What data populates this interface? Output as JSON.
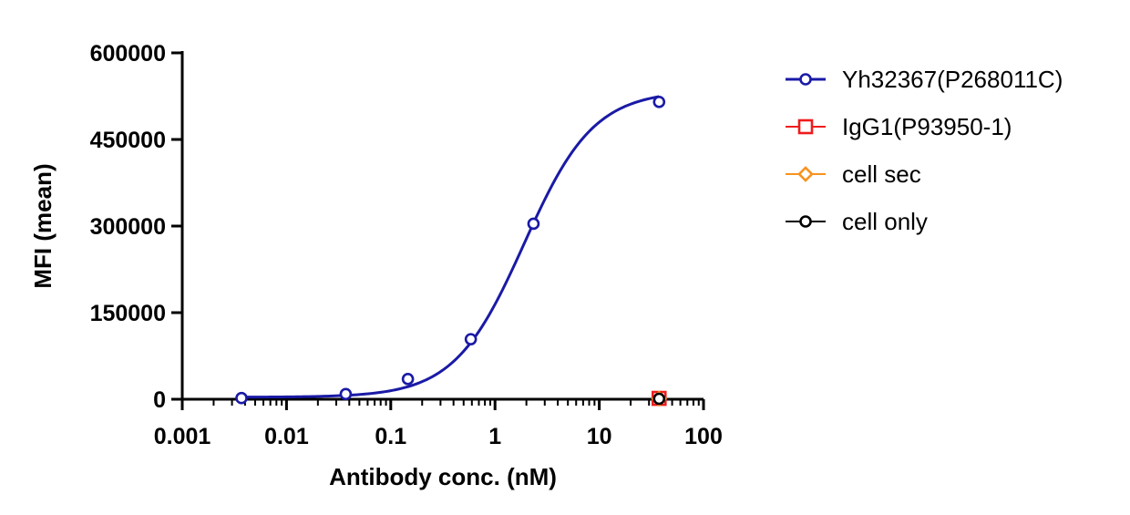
{
  "chart_data": {
    "type": "scatter",
    "title": "",
    "xlabel": "Antibody conc. (nM)",
    "ylabel": "MFI (mean)",
    "x_scale": "log",
    "xlim": [
      0.001,
      100
    ],
    "ylim": [
      0,
      600000
    ],
    "x_ticks": [
      0.001,
      0.01,
      0.1,
      1,
      10,
      100
    ],
    "x_tick_labels": [
      "0.001",
      "0.01",
      "0.1",
      "1",
      "10",
      "100"
    ],
    "y_ticks": [
      0,
      150000,
      300000,
      450000,
      600000
    ],
    "y_tick_labels": [
      "0",
      "150000",
      "300000",
      "450000",
      "600000"
    ],
    "grid": false,
    "legend_position": "right",
    "series": [
      {
        "name": "Yh32367(P268011C)",
        "color": "#1a1aa6",
        "marker": "circle",
        "x": [
          0.0037,
          0.037,
          0.146,
          0.586,
          2.34,
          37.5
        ],
        "y": [
          2000,
          9000,
          35000,
          104000,
          304000,
          515000
        ],
        "fit": {
          "bottom": 3500,
          "top": 535000,
          "ec50": 1.9,
          "hill": 1.3
        }
      },
      {
        "name": "IgG1(P93950-1)",
        "color": "#ee1c1c",
        "marker": "square",
        "x": [
          37.5
        ],
        "y": [
          1500
        ]
      },
      {
        "name": "cell sec",
        "color": "#f7931e",
        "marker": "diamond",
        "x": [
          37.5
        ],
        "y": [
          1000
        ]
      },
      {
        "name": "cell only",
        "color": "#000000",
        "marker": "circle",
        "x": [
          37.5
        ],
        "y": [
          800
        ]
      }
    ]
  }
}
